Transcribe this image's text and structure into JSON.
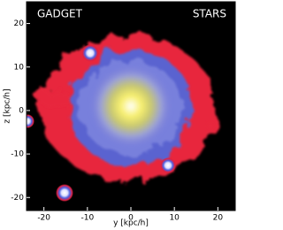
{
  "chart_data": {
    "type": "image",
    "title": "GADGET",
    "subtitle": "STARS",
    "x_label": "y [kpc/h]",
    "y_label": "z [kpc/h]",
    "xlim": [
      -24,
      24
    ],
    "ylim": [
      -23,
      25
    ],
    "xticks": [
      -20,
      -10,
      0,
      10,
      20
    ],
    "yticks": [
      -20,
      -10,
      0,
      10,
      20
    ]
  }
}
